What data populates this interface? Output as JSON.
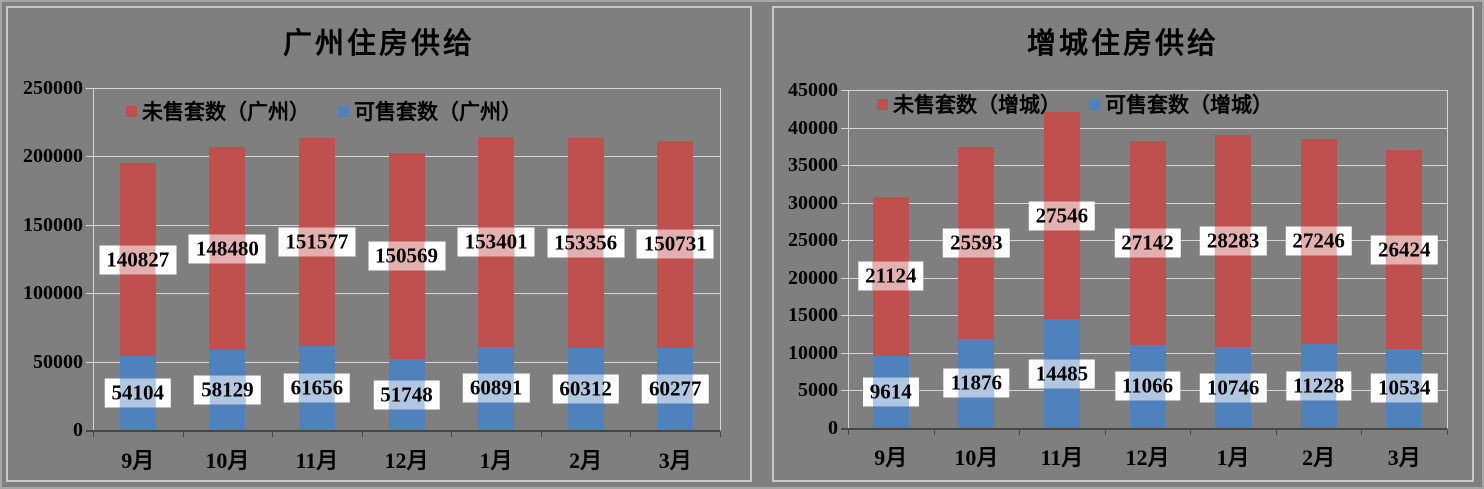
{
  "colors": {
    "background": "#7F7F7F",
    "unsold_red": "#C0504D",
    "available_blue": "#4F81BD",
    "gridline": "#D6D6D6",
    "axis": "#474747",
    "label_box": "#FFFFFF",
    "text": "#000000"
  },
  "chart_data": [
    {
      "type": "bar",
      "stacked": true,
      "region_key": "guangzhou",
      "title": "广州住房供给",
      "categories": [
        "9月",
        "10月",
        "11月",
        "12月",
        "1月",
        "2月",
        "3月"
      ],
      "series": [
        {
          "key": "unsold",
          "name": "未售套数（广州）",
          "color": "#C0504D",
          "stack": "top",
          "values": [
            140827,
            148480,
            151577,
            150569,
            153401,
            153356,
            150731
          ]
        },
        {
          "key": "available",
          "name": "可售套数（广州）",
          "color": "#4F81BD",
          "stack": "bottom",
          "values": [
            54104,
            58129,
            61656,
            51748,
            60891,
            60312,
            60277
          ]
        }
      ],
      "xlabel": "",
      "ylabel": "",
      "ylim": [
        0,
        250000
      ],
      "ytick_step": 50000,
      "ytick_labels": [
        "0",
        "50000",
        "100000",
        "150000",
        "200000",
        "250000"
      ],
      "grid": true,
      "legend_position": "top-inside",
      "data_labels": "segment-center"
    },
    {
      "type": "bar",
      "stacked": true,
      "region_key": "zengcheng",
      "title": "增城住房供给",
      "categories": [
        "9月",
        "10月",
        "11月",
        "12月",
        "1月",
        "2月",
        "3月"
      ],
      "series": [
        {
          "key": "unsold",
          "name": "未售套数（增城）",
          "color": "#C0504D",
          "stack": "top",
          "values": [
            21124,
            25593,
            27546,
            27142,
            28283,
            27246,
            26424
          ]
        },
        {
          "key": "available",
          "name": "可售套数（增城）",
          "color": "#4F81BD",
          "stack": "bottom",
          "values": [
            9614,
            11876,
            14485,
            11066,
            10746,
            11228,
            10534
          ]
        }
      ],
      "xlabel": "",
      "ylabel": "",
      "ylim": [
        0,
        45000
      ],
      "ytick_step": 5000,
      "ytick_labels": [
        "0",
        "5000",
        "10000",
        "15000",
        "20000",
        "25000",
        "30000",
        "35000",
        "40000",
        "45000"
      ],
      "grid": true,
      "legend_position": "top-inside",
      "data_labels": "segment-center"
    }
  ]
}
